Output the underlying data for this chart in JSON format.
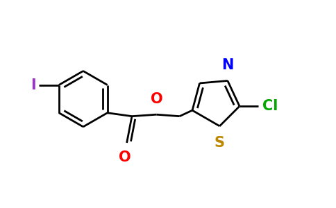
{
  "background_color": "#ffffff",
  "line_color": "#000000",
  "bond_width": 2.0,
  "label_I": {
    "text": "I",
    "color": "#9933cc",
    "fontsize": 15
  },
  "label_O_ester": {
    "text": "O",
    "color": "#ff0000",
    "fontsize": 15
  },
  "label_O_carbonyl": {
    "text": "O",
    "color": "#ff0000",
    "fontsize": 15
  },
  "label_N": {
    "text": "N",
    "color": "#0000ff",
    "fontsize": 15
  },
  "label_S": {
    "text": "S",
    "color": "#bb8800",
    "fontsize": 15
  },
  "label_Cl": {
    "text": "Cl",
    "color": "#00aa00",
    "fontsize": 15
  },
  "figsize": [
    4.84,
    3.0
  ],
  "dpi": 100
}
